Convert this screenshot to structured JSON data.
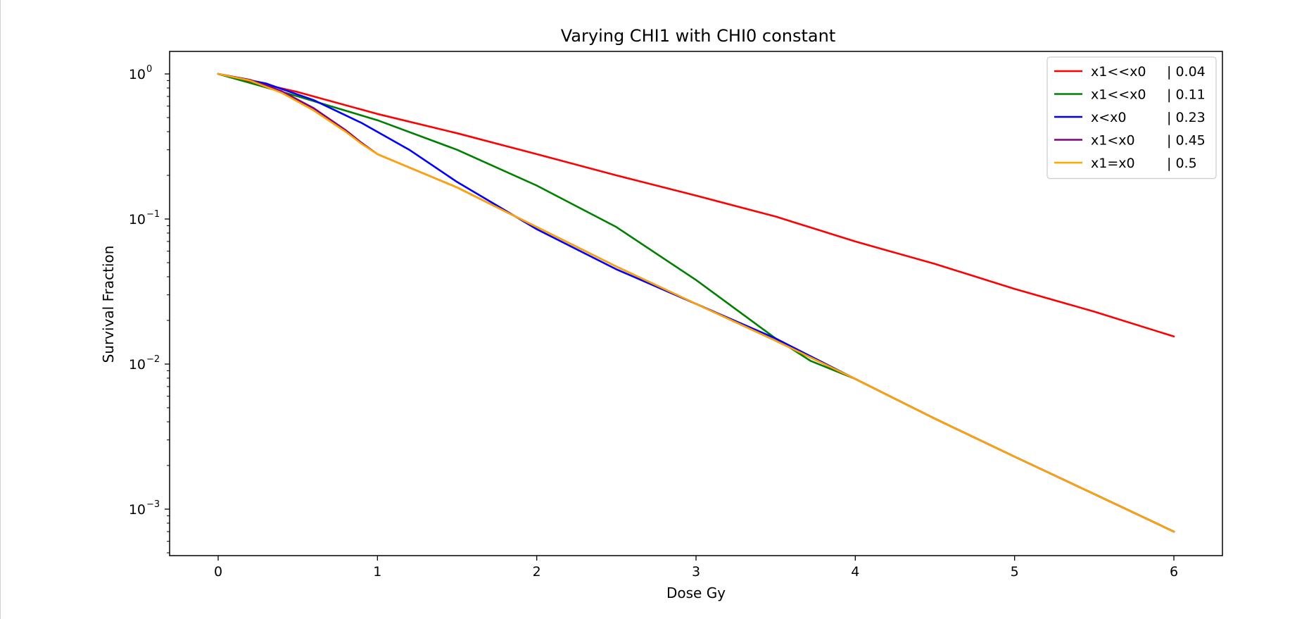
{
  "chart_data": {
    "type": "line",
    "title": "Varying CHI1 with CHI0 constant",
    "xlabel": "Dose Gy",
    "ylabel": "Survival Fraction",
    "xlim": [
      -0.3,
      6.3
    ],
    "ylim": [
      0.0005,
      1.5
    ],
    "yscale": "log",
    "xticks": [
      0,
      1,
      2,
      3,
      4,
      5,
      6
    ],
    "xtick_labels": [
      "0",
      "1",
      "2",
      "3",
      "4",
      "5",
      "6"
    ],
    "yticks": [
      {
        "value": 1,
        "base": "10",
        "exp": "0"
      },
      {
        "value": 0.1,
        "base": "10",
        "exp": "−1"
      },
      {
        "value": 0.01,
        "base": "10",
        "exp": "−2"
      },
      {
        "value": 0.001,
        "base": "10",
        "exp": "−3"
      }
    ],
    "grid": false,
    "legend_position": "top-right",
    "series": [
      {
        "name": "x1<<x0   | 0.04",
        "color": "#ff0000",
        "x": [
          0,
          0.5,
          1,
          1.5,
          2,
          2.5,
          3,
          3.5,
          4,
          4.5,
          5,
          5.5,
          6
        ],
        "y": [
          1.0,
          0.75,
          0.53,
          0.39,
          0.28,
          0.2,
          0.145,
          0.104,
          0.07,
          0.049,
          0.033,
          0.023,
          0.0155
        ]
      },
      {
        "name": "x1<<x0   | 0.11",
        "color": "#008000",
        "x": [
          0,
          0.5,
          1,
          1.5,
          2,
          2.5,
          3,
          3.5,
          3.72,
          4,
          4.5,
          5,
          5.5,
          6
        ],
        "y": [
          1.0,
          0.7,
          0.48,
          0.3,
          0.17,
          0.088,
          0.038,
          0.015,
          0.0105,
          0.0079,
          0.0042,
          0.0023,
          0.00127,
          0.0007
        ]
      },
      {
        "name": "x<x0       | 0.23",
        "color": "#0000ff",
        "x": [
          0,
          0.3,
          0.6,
          0.9,
          1.2,
          1.5,
          1.8,
          2,
          2.5,
          3,
          3.5,
          4,
          4.5,
          5,
          5.5,
          6
        ],
        "y": [
          1.0,
          0.86,
          0.66,
          0.46,
          0.3,
          0.18,
          0.115,
          0.085,
          0.045,
          0.026,
          0.015,
          0.0079,
          0.0042,
          0.0023,
          0.00127,
          0.0007
        ]
      },
      {
        "name": "x1<x0     | 0.45",
        "color": "#800080",
        "x": [
          0,
          0.2,
          0.4,
          0.6,
          0.8,
          0.9,
          1,
          1.5,
          2,
          2.5,
          3,
          3.5,
          4,
          4.5,
          5,
          5.5,
          6
        ],
        "y": [
          1.0,
          0.91,
          0.76,
          0.58,
          0.41,
          0.335,
          0.28,
          0.165,
          0.088,
          0.047,
          0.026,
          0.0145,
          0.0079,
          0.0042,
          0.0023,
          0.00127,
          0.0007
        ]
      },
      {
        "name": "x1=x0      | 0.5",
        "color": "#ffa500",
        "x": [
          0,
          0.2,
          0.4,
          0.6,
          0.8,
          0.9,
          1,
          1.5,
          2,
          2.5,
          3,
          3.5,
          4,
          4.5,
          5,
          5.5,
          6
        ],
        "y": [
          1.0,
          0.9,
          0.74,
          0.56,
          0.4,
          0.33,
          0.28,
          0.165,
          0.088,
          0.047,
          0.026,
          0.0145,
          0.0079,
          0.0042,
          0.0023,
          0.00127,
          0.0007
        ]
      }
    ]
  }
}
